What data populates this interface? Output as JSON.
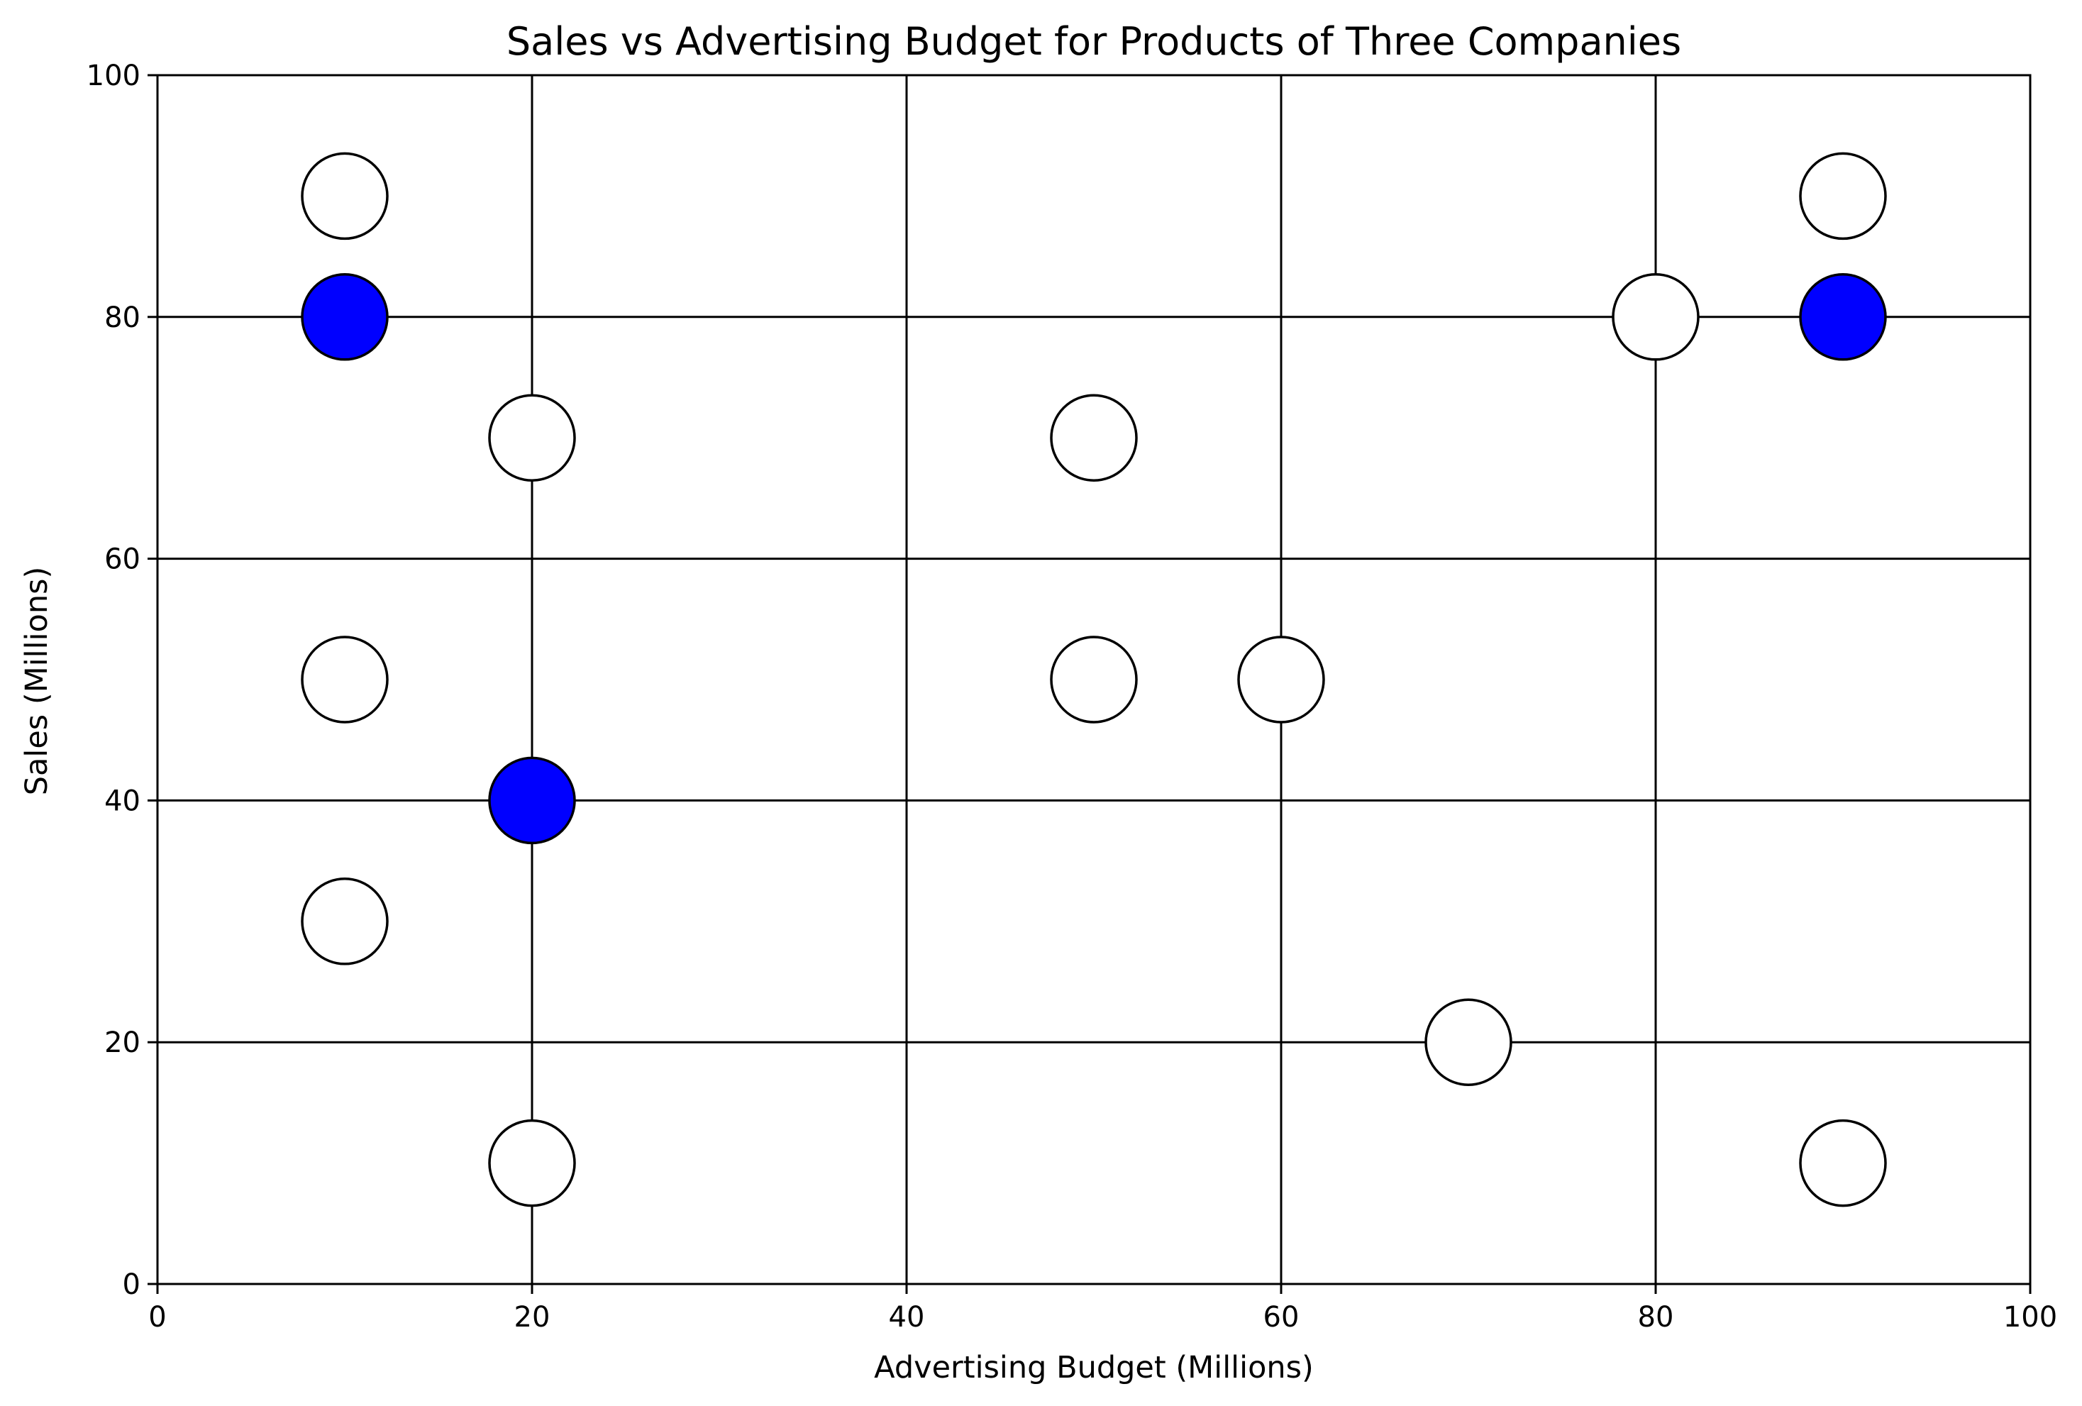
{
  "chart_data": {
    "type": "scatter",
    "title": "Sales vs Advertising Budget for Products of Three Companies",
    "xlabel": "Advertising Budget (Millions)",
    "ylabel": "Sales (Millions)",
    "xlim": [
      0,
      100
    ],
    "ylim": [
      0,
      100
    ],
    "xticks": [
      0,
      20,
      40,
      60,
      80,
      100
    ],
    "yticks": [
      0,
      20,
      40,
      60,
      80,
      100
    ],
    "grid": true,
    "marker_edge_color": "#000000",
    "series": [
      {
        "color": "#ffffff",
        "points": [
          {
            "x": 10,
            "y": 90
          },
          {
            "x": 20,
            "y": 70
          },
          {
            "x": 50,
            "y": 70
          },
          {
            "x": 10,
            "y": 50
          },
          {
            "x": 50,
            "y": 50
          },
          {
            "x": 60,
            "y": 50
          },
          {
            "x": 10,
            "y": 30
          },
          {
            "x": 20,
            "y": 10
          },
          {
            "x": 70,
            "y": 20
          },
          {
            "x": 80,
            "y": 80
          },
          {
            "x": 90,
            "y": 90
          },
          {
            "x": 90,
            "y": 10
          }
        ]
      },
      {
        "color": "#0000ff",
        "points": [
          {
            "x": 10,
            "y": 80
          },
          {
            "x": 20,
            "y": 40
          },
          {
            "x": 90,
            "y": 80
          }
        ]
      }
    ]
  }
}
